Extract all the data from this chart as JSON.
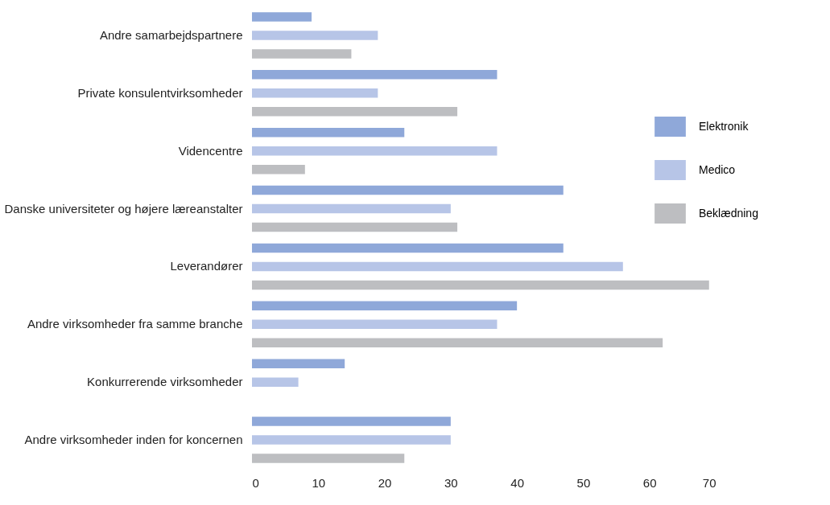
{
  "chart_data": {
    "type": "bar",
    "orientation": "horizontal",
    "categories": [
      "Andre samarbejdspartnere",
      "Private konsulentvirksomheder",
      "Videncentre",
      "Danske universiteter og højere læreanstalter",
      "Leverandører",
      "Andre virksomheder fra samme branche",
      "Konkurrerende virksomheder",
      "Andre virksomheder inden for koncernen"
    ],
    "series": [
      {
        "name": "Elektronik",
        "color": "#8fa8d9",
        "values": [
          9,
          37,
          23,
          47,
          47,
          40,
          14,
          30
        ]
      },
      {
        "name": "Medico",
        "color": "#b7c5e7",
        "values": [
          19,
          19,
          37,
          30,
          56,
          37,
          7,
          30
        ]
      },
      {
        "name": "Beklædning",
        "color": "#bdbec1",
        "values": [
          15,
          31,
          8,
          31,
          69,
          62,
          0,
          23
        ]
      }
    ],
    "xlim": [
      0,
      70
    ],
    "xticks": [
      0,
      10,
      20,
      30,
      40,
      50,
      60,
      70
    ],
    "grid": false,
    "legend": "right"
  }
}
